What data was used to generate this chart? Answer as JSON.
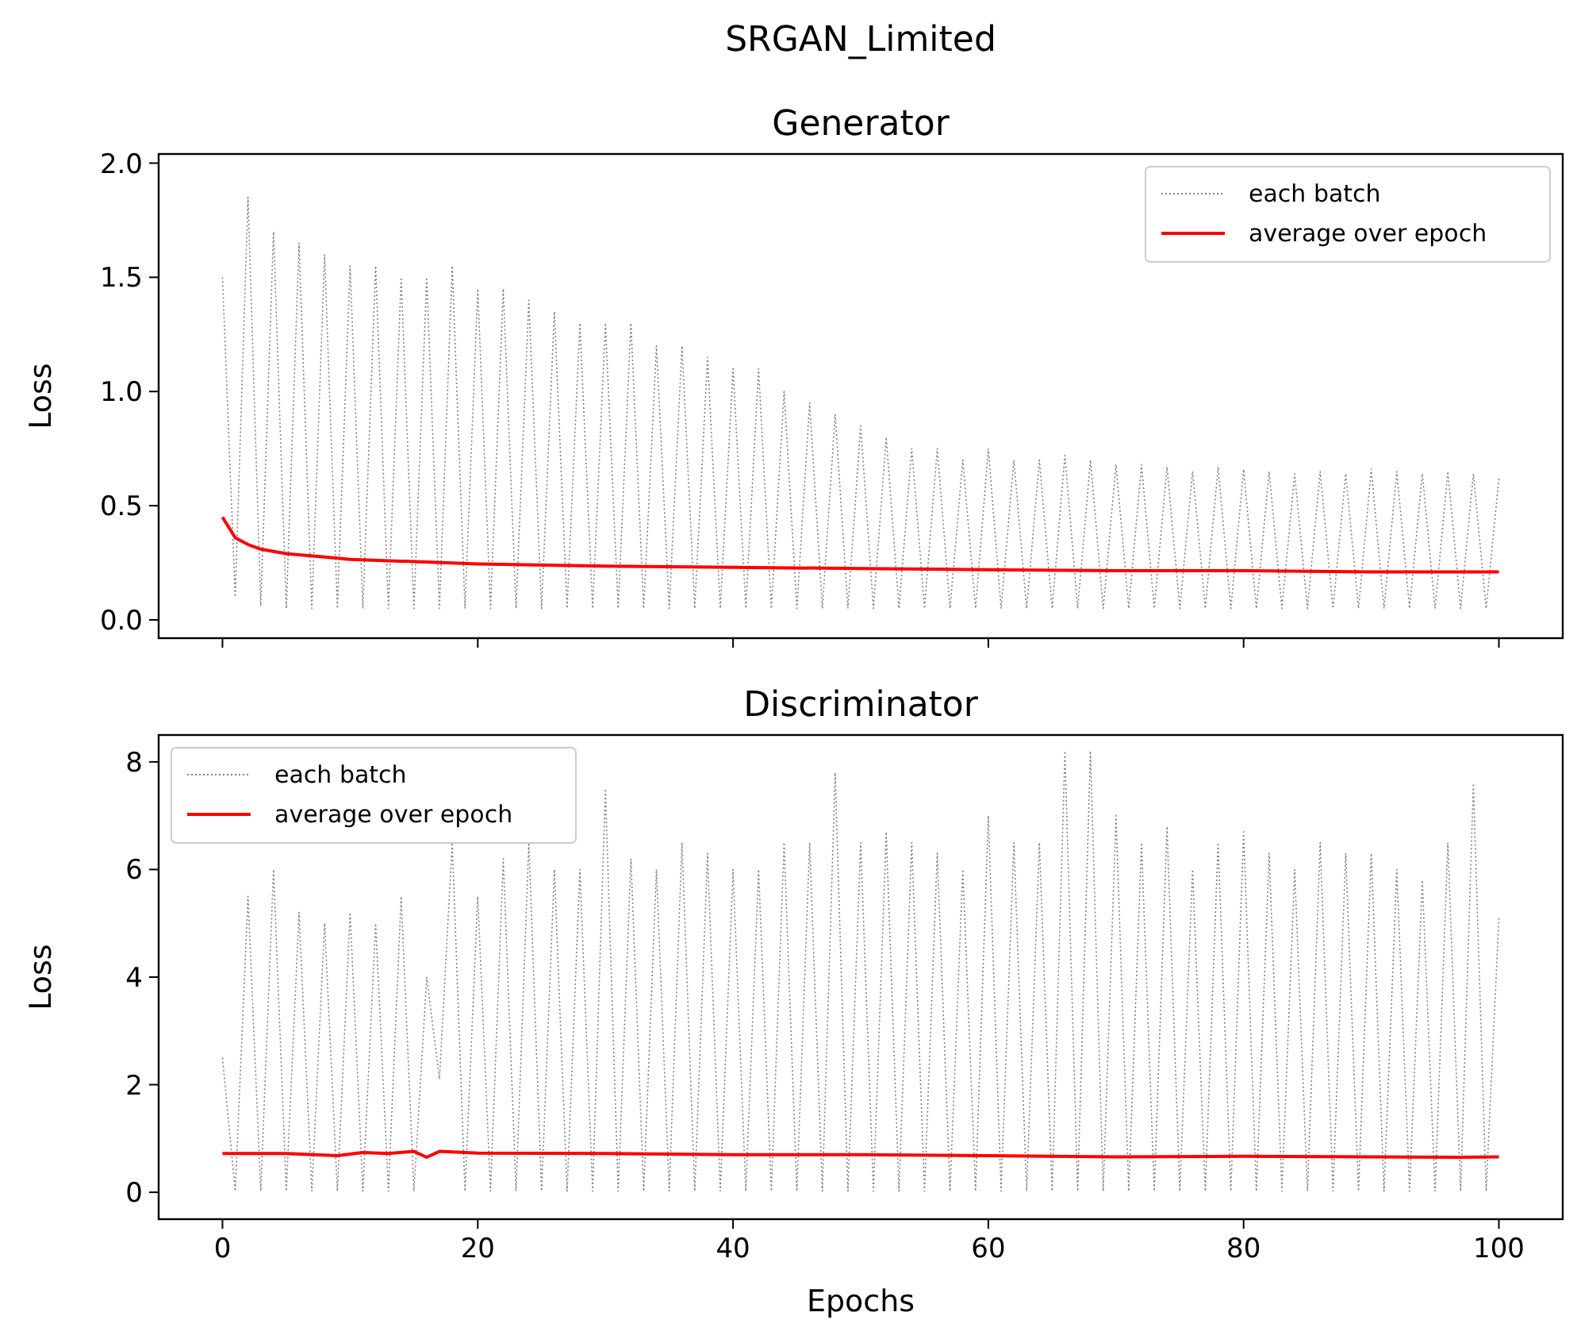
{
  "chart_data": [
    {
      "type": "line",
      "title": "Generator",
      "ylabel": "Loss",
      "annotations": [
        "SRGAN_Limited"
      ],
      "xlim": [
        -5,
        105
      ],
      "ylim": [
        -0.08,
        2.04
      ],
      "xticks": [
        {
          "value": 0,
          "label": null
        },
        {
          "value": 20,
          "label": null
        },
        {
          "value": 40,
          "label": null
        },
        {
          "value": 60,
          "label": null
        },
        {
          "value": 80,
          "label": null
        },
        {
          "value": 100,
          "label": null
        }
      ],
      "yticks": [
        {
          "value": 0,
          "label": "0.0"
        },
        {
          "value": 0.5,
          "label": "0.5"
        },
        {
          "value": 1,
          "label": "1.0"
        },
        {
          "value": 1.5,
          "label": "1.5"
        },
        {
          "value": 2,
          "label": "2.0"
        }
      ],
      "tick_labels": "y",
      "grid": false,
      "legend": "top right",
      "series": [
        {
          "name": "each batch",
          "color": "#808080",
          "line_style": "dotted",
          "x": [
            0,
            1,
            2,
            3,
            4,
            5,
            6,
            7,
            8,
            9,
            10,
            11,
            12,
            13,
            14,
            15,
            16,
            17,
            18,
            19,
            20,
            21,
            22,
            23,
            24,
            25,
            26,
            27,
            28,
            29,
            30,
            31,
            32,
            33,
            34,
            35,
            36,
            37,
            38,
            39,
            40,
            41,
            42,
            43,
            44,
            45,
            46,
            47,
            48,
            49,
            50,
            51,
            52,
            53,
            54,
            55,
            56,
            57,
            58,
            59,
            60,
            61,
            62,
            63,
            64,
            65,
            66,
            67,
            68,
            69,
            70,
            71,
            72,
            73,
            74,
            75,
            76,
            77,
            78,
            79,
            80,
            81,
            82,
            83,
            84,
            85,
            86,
            87,
            88,
            89,
            90,
            91,
            92,
            93,
            94,
            95,
            96,
            97,
            98,
            99,
            100
          ],
          "values": [
            1.5,
            0.1,
            1.85,
            0.06,
            1.7,
            0.05,
            1.65,
            0.05,
            1.6,
            0.05,
            1.55,
            0.05,
            1.55,
            0.05,
            1.5,
            0.05,
            1.5,
            0.05,
            1.55,
            0.05,
            1.45,
            0.05,
            1.45,
            0.05,
            1.4,
            0.05,
            1.35,
            0.05,
            1.3,
            0.05,
            1.3,
            0.05,
            1.3,
            0.05,
            1.2,
            0.05,
            1.2,
            0.05,
            1.15,
            0.05,
            1.1,
            0.05,
            1.1,
            0.05,
            1.0,
            0.05,
            0.95,
            0.05,
            0.9,
            0.05,
            0.85,
            0.05,
            0.8,
            0.05,
            0.75,
            0.05,
            0.75,
            0.05,
            0.7,
            0.05,
            0.75,
            0.05,
            0.7,
            0.05,
            0.7,
            0.05,
            0.72,
            0.05,
            0.7,
            0.05,
            0.68,
            0.05,
            0.68,
            0.05,
            0.67,
            0.05,
            0.65,
            0.05,
            0.67,
            0.05,
            0.66,
            0.05,
            0.65,
            0.05,
            0.64,
            0.05,
            0.65,
            0.05,
            0.64,
            0.05,
            0.66,
            0.05,
            0.65,
            0.05,
            0.64,
            0.05,
            0.65,
            0.05,
            0.64,
            0.05,
            0.62
          ]
        },
        {
          "name": "average over epoch",
          "color": "#ff0000",
          "line_style": "solid",
          "x": [
            0,
            1,
            2,
            3,
            4,
            5,
            6,
            8,
            10,
            15,
            20,
            30,
            40,
            50,
            60,
            70,
            80,
            90,
            100
          ],
          "values": [
            0.45,
            0.36,
            0.33,
            0.31,
            0.3,
            0.29,
            0.285,
            0.275,
            0.265,
            0.255,
            0.245,
            0.235,
            0.23,
            0.225,
            0.22,
            0.215,
            0.215,
            0.21,
            0.21
          ]
        }
      ]
    },
    {
      "type": "line",
      "title": "Discriminator",
      "xlabel": "Epochs",
      "ylabel": "Loss",
      "xlim": [
        -5,
        105
      ],
      "ylim": [
        -0.5,
        8.5
      ],
      "xticks": [
        0,
        20,
        40,
        60,
        80,
        100
      ],
      "yticks": [
        0,
        2,
        4,
        6,
        8
      ],
      "grid": false,
      "legend": "top left",
      "series": [
        {
          "name": "each batch",
          "color": "#808080",
          "line_style": "dotted",
          "x": [
            0,
            1,
            2,
            3,
            4,
            5,
            6,
            7,
            8,
            9,
            10,
            11,
            12,
            13,
            14,
            15,
            16,
            17,
            18,
            19,
            20,
            21,
            22,
            23,
            24,
            25,
            26,
            27,
            28,
            29,
            30,
            31,
            32,
            33,
            34,
            35,
            36,
            37,
            38,
            39,
            40,
            41,
            42,
            43,
            44,
            45,
            46,
            47,
            48,
            49,
            50,
            51,
            52,
            53,
            54,
            55,
            56,
            57,
            58,
            59,
            60,
            61,
            62,
            63,
            64,
            65,
            66,
            67,
            68,
            69,
            70,
            71,
            72,
            73,
            74,
            75,
            76,
            77,
            78,
            79,
            80,
            81,
            82,
            83,
            84,
            85,
            86,
            87,
            88,
            89,
            90,
            91,
            92,
            93,
            94,
            95,
            96,
            97,
            98,
            99,
            100
          ],
          "values": [
            2.5,
            0.02,
            5.5,
            0.02,
            6.0,
            0.02,
            5.2,
            0.02,
            5.0,
            0.02,
            5.2,
            0.02,
            5.0,
            0.02,
            5.5,
            0.02,
            4.0,
            2.1,
            6.5,
            0.02,
            5.5,
            0.02,
            6.2,
            0.02,
            6.5,
            0.02,
            6.0,
            0.02,
            6.0,
            0.02,
            7.5,
            0.02,
            6.2,
            0.02,
            6.0,
            0.02,
            6.5,
            0.02,
            6.3,
            0.02,
            6.0,
            0.02,
            6.0,
            0.02,
            6.5,
            0.02,
            6.5,
            0.02,
            7.8,
            0.02,
            6.5,
            0.02,
            6.7,
            0.02,
            6.5,
            0.02,
            6.3,
            0.02,
            6.0,
            0.02,
            7.0,
            0.02,
            6.5,
            0.02,
            6.5,
            0.02,
            8.2,
            0.02,
            8.2,
            0.02,
            7.0,
            0.02,
            6.5,
            0.02,
            6.8,
            0.02,
            6.0,
            0.02,
            6.5,
            0.02,
            6.7,
            0.02,
            6.3,
            0.02,
            6.0,
            0.02,
            6.5,
            0.02,
            6.3,
            0.02,
            6.3,
            0.02,
            6.0,
            0.02,
            5.8,
            0.02,
            6.5,
            0.02,
            7.6,
            0.02,
            5.1
          ]
        },
        {
          "name": "average over epoch",
          "color": "#ff0000",
          "line_style": "solid",
          "x": [
            0,
            5,
            9,
            11,
            13,
            15,
            16,
            17,
            20,
            30,
            40,
            50,
            60,
            70,
            80,
            90,
            97,
            100
          ],
          "values": [
            0.72,
            0.72,
            0.68,
            0.74,
            0.72,
            0.76,
            0.65,
            0.76,
            0.73,
            0.72,
            0.7,
            0.7,
            0.68,
            0.66,
            0.67,
            0.66,
            0.65,
            0.66
          ]
        }
      ]
    }
  ]
}
